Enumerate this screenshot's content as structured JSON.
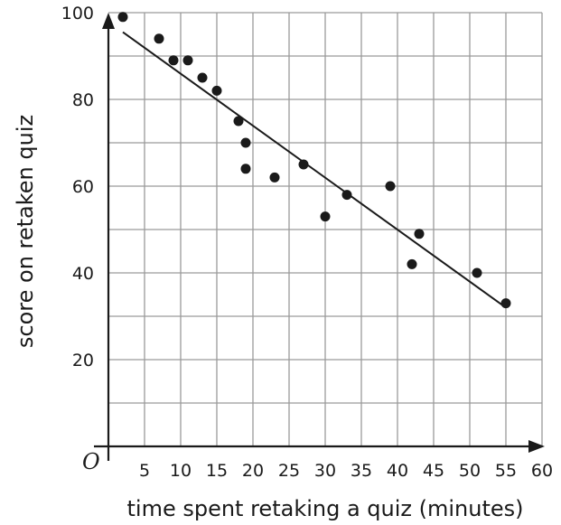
{
  "chart_data": {
    "type": "scatter",
    "xlabel": "time spent retaking a quiz (minutes)",
    "ylabel": "score on retaken quiz",
    "origin_label": "O",
    "xlim": [
      0,
      60
    ],
    "ylim": [
      0,
      100
    ],
    "x_grid_step": 5,
    "y_grid_step": 10,
    "x_ticks": [
      5,
      10,
      15,
      20,
      25,
      30,
      35,
      40,
      45,
      50,
      55,
      60
    ],
    "x_tick_labels": [
      "5",
      "10",
      "15",
      "20",
      "25",
      "30",
      "35",
      "40",
      "45",
      "50",
      "55",
      "60"
    ],
    "y_ticks": [
      20,
      40,
      60,
      80,
      100
    ],
    "y_tick_labels": [
      "20",
      "40",
      "60",
      "80",
      "100"
    ],
    "grid": true,
    "series": [
      {
        "x": [
          2,
          7,
          9,
          11,
          13,
          15,
          18,
          19,
          19,
          23,
          27,
          30,
          33,
          39,
          42,
          43,
          51,
          55
        ],
        "y": [
          99,
          94,
          89,
          89,
          85,
          82,
          75,
          70,
          64,
          62,
          65,
          53,
          58,
          60,
          42,
          49,
          40,
          33
        ]
      }
    ],
    "trend_line": {
      "x": [
        2,
        55
      ],
      "y": [
        95.5,
        32
      ]
    },
    "colors": {
      "grid": "#9a9a9a",
      "axis": "#1a1a1a",
      "points": "#1a1a1a",
      "line": "#1a1a1a"
    }
  }
}
